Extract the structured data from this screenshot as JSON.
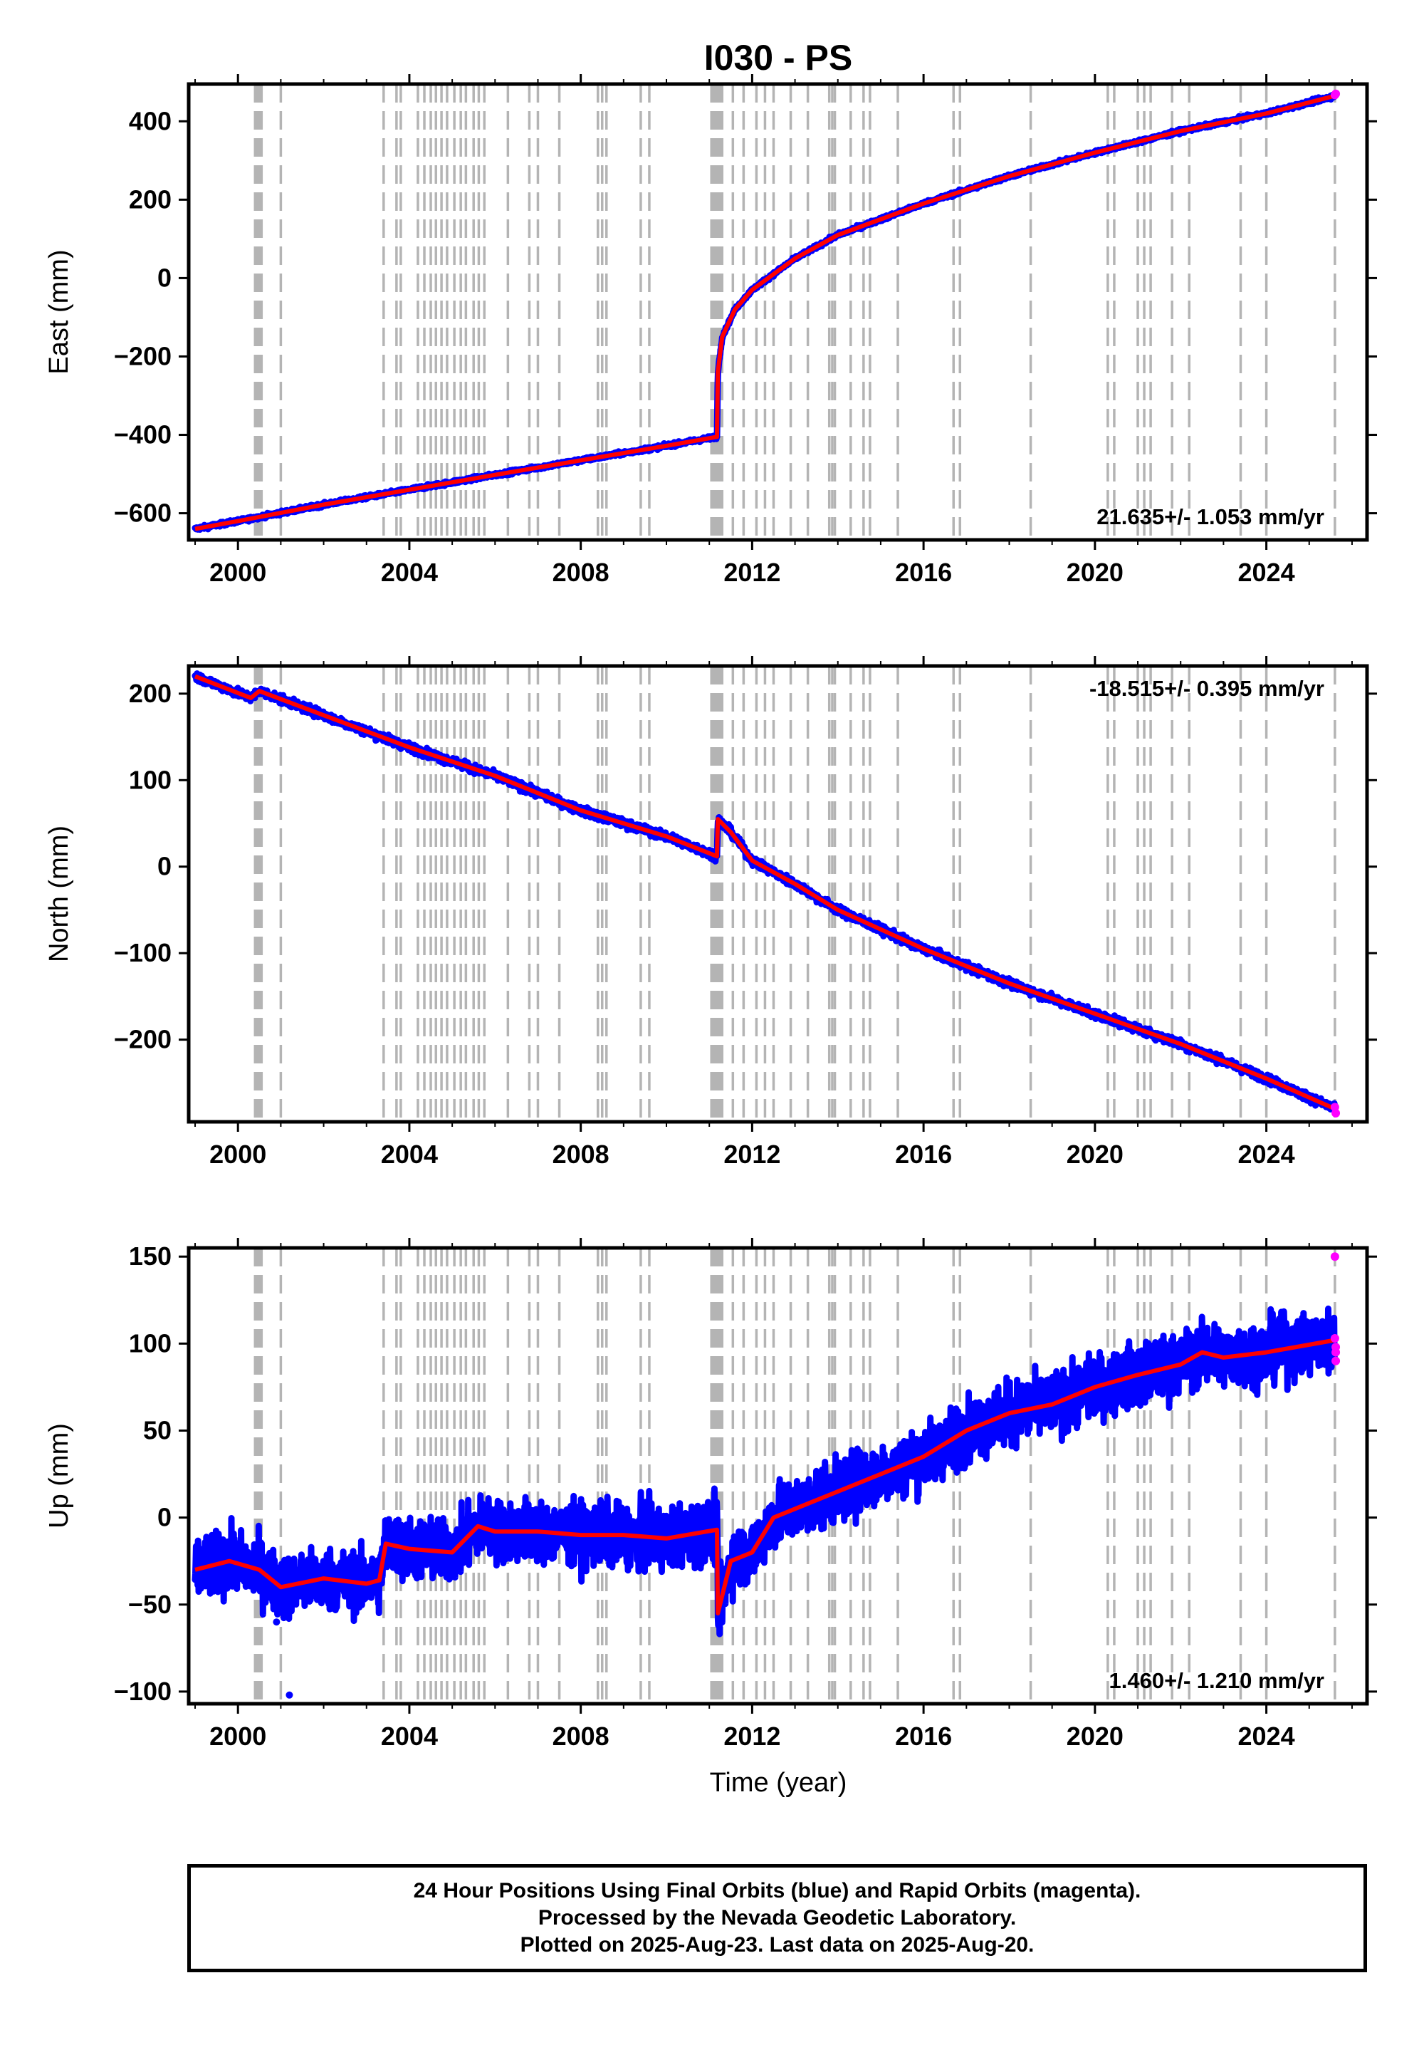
{
  "chart_data": {
    "type": "scatter",
    "title": "I030 - PS",
    "xlabel": "Time (year)",
    "xlim": [
      1998.85,
      2026.35
    ],
    "x_ticks": [
      2000,
      2004,
      2008,
      2012,
      2016,
      2020,
      2024
    ],
    "x_tick_labels": [
      "2000",
      "2004",
      "2008",
      "2012",
      "2016",
      "2020",
      "2024"
    ],
    "equipment_change_years": [
      2000.4,
      2000.45,
      2000.5,
      2000.55,
      2001.0,
      2003.4,
      2003.7,
      2003.8,
      2004.2,
      2004.35,
      2004.5,
      2004.62,
      2004.75,
      2004.88,
      2005.05,
      2005.2,
      2005.32,
      2005.5,
      2005.62,
      2005.75,
      2006.3,
      2006.8,
      2007.0,
      2007.5,
      2008.4,
      2008.5,
      2008.6,
      2009.4,
      2009.6,
      2011.05,
      2011.1,
      2011.15,
      2011.2,
      2011.25,
      2011.3,
      2011.55,
      2011.8,
      2012.1,
      2012.3,
      2012.5,
      2012.9,
      2013.3,
      2013.8,
      2013.87,
      2013.93,
      2014.3,
      2014.6,
      2014.75,
      2015.4,
      2016.7,
      2016.85,
      2018.5,
      2020.3,
      2020.45,
      2021.0,
      2021.15,
      2021.3,
      2021.8,
      2022.2,
      2023.4,
      2024.0,
      2025.6
    ],
    "panels": [
      {
        "ylabel": "East (mm)",
        "ylim": [
          -668,
          495
        ],
        "y_ticks": [
          400,
          200,
          0,
          -200,
          -400,
          -600
        ],
        "y_tick_labels": [
          "400",
          "200",
          "0",
          "−200",
          "−400",
          "−600"
        ],
        "rate_annotation": "21.635+/- 1.053 mm/yr",
        "annotation_position": "bottom-right",
        "series": [
          {
            "kind": "model",
            "x": [
              1999.0,
              2000.0,
              2002.0,
              2004.0,
              2006.0,
              2008.0,
              2010.0,
              2011.18,
              2011.2,
              2011.3,
              2011.6,
              2012.0,
              2013.0,
              2014.0,
              2016.0,
              2018.0,
              2020.0,
              2022.0,
              2024.0,
              2025.6
            ],
            "y": [
              -640,
              -620,
              -578,
              -540,
              -502,
              -465,
              -428,
              -405,
              -240,
              -150,
              -80,
              -30,
              50,
              110,
              190,
              260,
              320,
              375,
              420,
              465
            ]
          }
        ],
        "rapid_points": {
          "x": [
            2025.6,
            2025.62
          ],
          "y": [
            467,
            470
          ]
        }
      },
      {
        "ylabel": "North (mm)",
        "ylim": [
          -295,
          232
        ],
        "y_ticks": [
          200,
          100,
          0,
          -100,
          -200
        ],
        "y_tick_labels": [
          "200",
          "100",
          "0",
          "−100",
          "−200"
        ],
        "rate_annotation": "-18.515+/- 0.395 mm/yr",
        "annotation_position": "top-right",
        "series": [
          {
            "kind": "model",
            "x": [
              1999.0,
              2000.3,
              2000.5,
              2002.0,
              2004.0,
              2006.0,
              2008.0,
              2010.0,
              2011.18,
              2011.2,
              2011.5,
              2012.0,
              2013.0,
              2014.0,
              2016.0,
              2018.0,
              2020.0,
              2022.0,
              2024.0,
              2025.6
            ],
            "y": [
              220,
              195,
              203,
              175,
              138,
              105,
              65,
              35,
              12,
              55,
              40,
              7,
              -20,
              -50,
              -95,
              -135,
              -170,
              -205,
              -245,
              -280
            ]
          }
        ],
        "rapid_points": {
          "x": [
            2025.6,
            2025.62
          ],
          "y": [
            -278,
            -285
          ]
        }
      },
      {
        "ylabel": "Up (mm)",
        "ylim": [
          -107,
          155
        ],
        "y_ticks": [
          150,
          100,
          50,
          0,
          -50,
          -100
        ],
        "y_tick_labels": [
          "150",
          "100",
          "50",
          "0",
          "−50",
          "−100"
        ],
        "rate_annotation": "1.460+/- 1.210 mm/yr",
        "annotation_position": "bottom-right",
        "series": [
          {
            "kind": "model",
            "x": [
              1999.0,
              1999.8,
              2000.5,
              2001.0,
              2002.0,
              2003.0,
              2003.3,
              2003.45,
              2004.0,
              2005.0,
              2005.6,
              2006.0,
              2007.0,
              2008.0,
              2009.0,
              2010.0,
              2011.18,
              2011.2,
              2011.5,
              2012.0,
              2012.5,
              2013.0,
              2014.0,
              2015.0,
              2016.0,
              2017.0,
              2018.0,
              2019.0,
              2020.0,
              2021.0,
              2022.0,
              2022.5,
              2023.0,
              2024.0,
              2025.6
            ],
            "y": [
              -30,
              -25,
              -30,
              -40,
              -35,
              -38,
              -36,
              -15,
              -18,
              -20,
              -5,
              -8,
              -8,
              -10,
              -10,
              -12,
              -7,
              -55,
              -25,
              -20,
              0,
              5,
              15,
              25,
              35,
              50,
              60,
              65,
              75,
              82,
              88,
              95,
              92,
              95,
              102
            ]
          }
        ],
        "rapid_points": {
          "x": [
            2025.6,
            2025.6,
            2025.62,
            2025.62,
            2025.62
          ],
          "y": [
            150,
            103,
            98,
            95,
            90
          ]
        }
      }
    ],
    "colors": {
      "final": "#0000ff",
      "rapid": "#ff00ff",
      "model": "#ff0000",
      "equipment": "#b4b4b4"
    },
    "grid": false,
    "footer": [
      "24 Hour Positions Using Final Orbits (blue) and Rapid Orbits (magenta).",
      "Processed by the Nevada Geodetic Laboratory.",
      "Plotted on 2025-Aug-23. Last data on 2025-Aug-20."
    ]
  }
}
